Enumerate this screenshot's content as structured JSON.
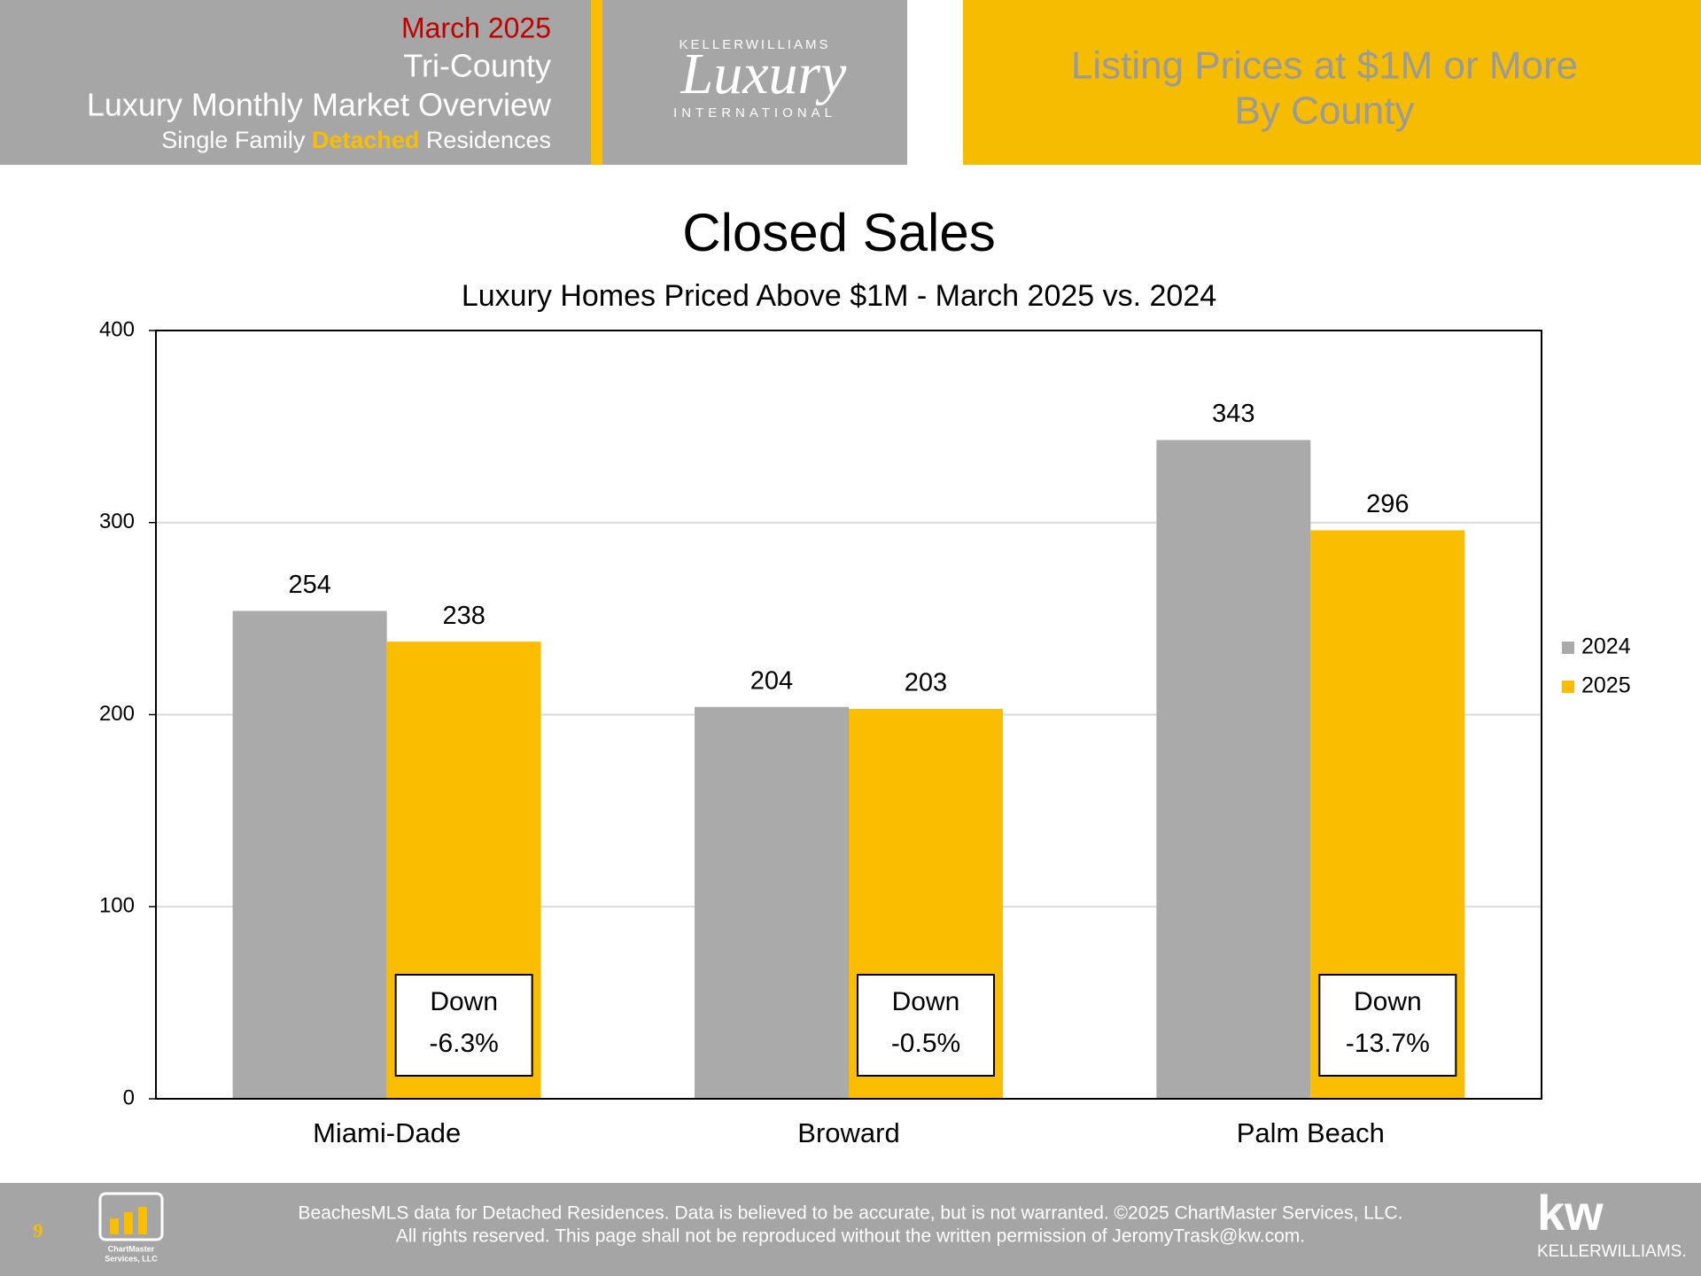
{
  "header": {
    "date": "March 2025",
    "region": "Tri-County",
    "title": "Luxury Monthly Market Overview",
    "subtitle_parts": [
      "Single Family ",
      "Detached",
      " Residences"
    ],
    "logo": {
      "brand": "KELLERWILLIAMS",
      "script": "Luxury",
      "sub": "INTERNATIONAL"
    },
    "banner": [
      "Listing Prices at $1M or More",
      "By County"
    ]
  },
  "chart_data": {
    "type": "bar",
    "title": "Closed Sales",
    "subtitle": "Luxury Homes Priced Above $1M - March 2025 vs. 2024",
    "categories": [
      "Miami-Dade",
      "Broward",
      "Palm Beach"
    ],
    "series": [
      {
        "name": "2024",
        "color": "#aaaaaa",
        "values": [
          254,
          204,
          343
        ]
      },
      {
        "name": "2025",
        "color": "#fbbd00",
        "values": [
          238,
          203,
          296
        ]
      }
    ],
    "ylim": [
      0,
      400
    ],
    "yticks": [
      0,
      100,
      200,
      300,
      400
    ],
    "grid": true,
    "legend": "right",
    "annotations": [
      [
        "Down",
        "-6.3%"
      ],
      [
        "Down",
        "-0.5%"
      ],
      [
        "Down",
        "-13.7%"
      ]
    ]
  },
  "footer": {
    "page": "9",
    "lines": [
      "BeachesMLS data for Detached Residences.  Data is believed to be accurate, but is not warranted.   ©2025  ChartMaster Services, LLC.",
      "All rights reserved. This page shall not be reproduced without the written permission of JeromyTrask@kw.com."
    ],
    "logo_left": [
      "ChartMaster",
      "Services, LLC"
    ],
    "logo_right": [
      "kw",
      "KELLERWILLIAMS."
    ]
  }
}
